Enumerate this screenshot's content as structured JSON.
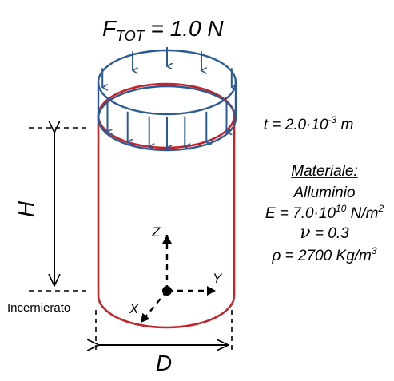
{
  "title": {
    "force_symbol": "F",
    "force_subscript": "TOT",
    "force_value": " = 1.0 N"
  },
  "labels": {
    "height": "H",
    "diameter": "D",
    "axis_z": "Z",
    "axis_y": "Y",
    "axis_x": "X",
    "constraint": "Incernierato"
  },
  "properties": {
    "thickness_prefix": "t = 2.0·10",
    "thickness_exp": "-3",
    "thickness_unit": " m",
    "material_heading": "Materiale:",
    "material_name": "Alluminio",
    "young_prefix": "E = 7.0·10",
    "young_exp": "10",
    "young_unit": " N/m",
    "young_unit_exp": "2",
    "poisson_symbol": "ν",
    "poisson_value": "= 0.3",
    "density_prefix": "ρ = 2700 Kg/m",
    "density_exp": "3"
  },
  "colors": {
    "cylinder": "#c4242a",
    "load_ring": "#2a5a96",
    "ink": "#000000"
  }
}
